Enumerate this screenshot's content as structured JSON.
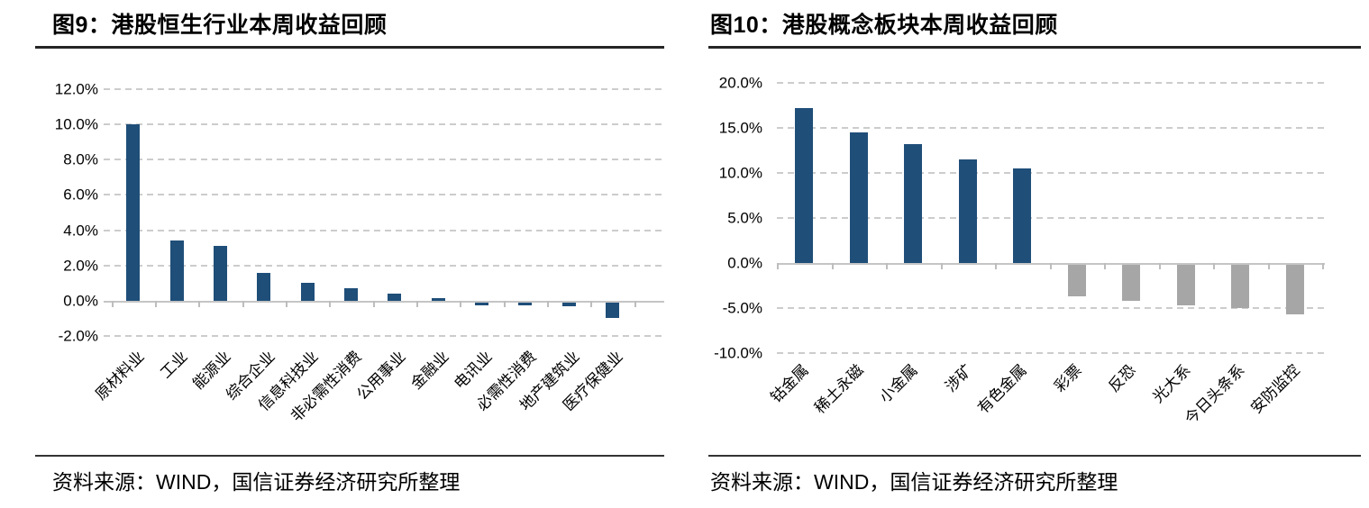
{
  "colors": {
    "bar_navy": "#1F4E79",
    "bar_gray": "#A6A6A6",
    "gridline": "#CCCCCC",
    "axis": "#C5C5C5",
    "rule": "#262626"
  },
  "chart_data": [
    {
      "type": "bar",
      "title": "图9：港股恒生行业本周收益回顾",
      "categories": [
        "原材料业",
        "工业",
        "能源业",
        "综合企业",
        "信息科技业",
        "非必需性消费",
        "公用事业",
        "金融业",
        "电讯业",
        "必需性消费",
        "地产建筑业",
        "医疗保健业"
      ],
      "values": [
        10.0,
        3.4,
        3.1,
        1.6,
        1.0,
        0.7,
        0.4,
        0.15,
        -0.15,
        -0.15,
        -0.2,
        -0.85
      ],
      "bar_colors": [
        "#1F4E79",
        "#1F4E79",
        "#1F4E79",
        "#1F4E79",
        "#1F4E79",
        "#1F4E79",
        "#1F4E79",
        "#1F4E79",
        "#1F4E79",
        "#1F4E79",
        "#1F4E79",
        "#1F4E79"
      ],
      "yticks": [
        "12.0%",
        "10.0%",
        "8.0%",
        "6.0%",
        "4.0%",
        "2.0%",
        "0.0%",
        "-2.0%"
      ],
      "ylim": [
        -2,
        12
      ],
      "ylabel": "",
      "xlabel": "",
      "grid": "dashed-horizontal",
      "legend": "none",
      "source": "资料来源：WIND，国信证券经济研究所整理"
    },
    {
      "type": "bar",
      "title": "图10：港股概念板块本周收益回顾",
      "categories": [
        "钴金属",
        "稀土永磁",
        "小金属",
        "涉矿",
        "有色金属",
        "彩票",
        "反恐",
        "光大系",
        "今日头条系",
        "安防监控"
      ],
      "values": [
        17.2,
        14.5,
        13.2,
        11.5,
        10.5,
        -3.5,
        -4.0,
        -4.5,
        -4.8,
        -5.5
      ],
      "bar_colors": [
        "#1F4E79",
        "#1F4E79",
        "#1F4E79",
        "#1F4E79",
        "#1F4E79",
        "#A6A6A6",
        "#A6A6A6",
        "#A6A6A6",
        "#A6A6A6",
        "#A6A6A6"
      ],
      "yticks": [
        "20.0%",
        "15.0%",
        "10.0%",
        "5.0%",
        "0.0%",
        "-5.0%",
        "-10.0%"
      ],
      "ylim": [
        -10,
        20
      ],
      "ylabel": "",
      "xlabel": "",
      "grid": "dashed-horizontal",
      "legend": "none",
      "source": "资料来源：WIND，国信证券经济研究所整理"
    }
  ]
}
